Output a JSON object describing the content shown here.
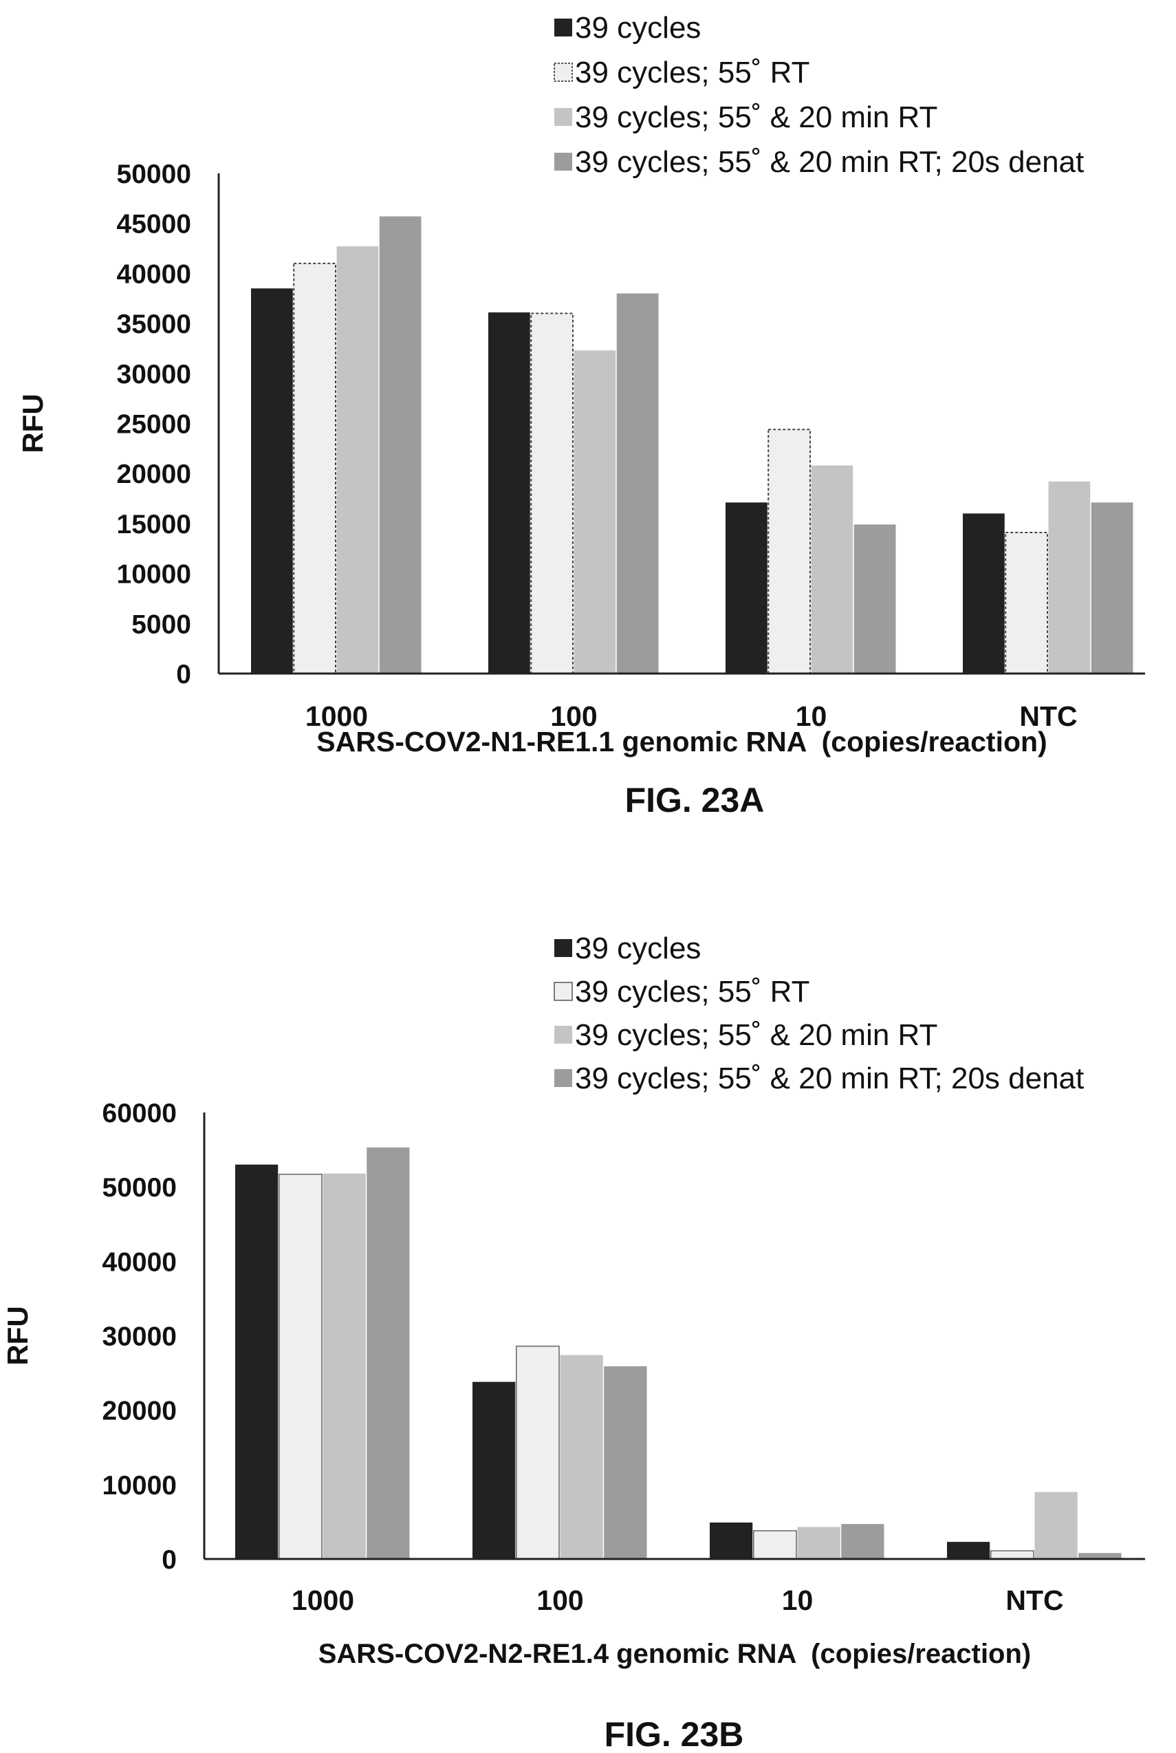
{
  "chart_data": [
    {
      "type": "bar",
      "figure_label": "FIG. 23A",
      "title": "",
      "xlabel": "SARS-COV2-N1-RE1.1 genomic RNA  (copies/reaction)",
      "ylabel": "RFU",
      "ylim": [
        0,
        50000
      ],
      "yticks": [
        0,
        5000,
        10000,
        15000,
        20000,
        25000,
        30000,
        35000,
        40000,
        45000,
        50000
      ],
      "categories": [
        "1000",
        "100",
        "10",
        "NTC"
      ],
      "legend_position": "top-right",
      "grid": false,
      "series": [
        {
          "name": "39 cycles",
          "color": "#222222",
          "values": [
            38500,
            36100,
            17100,
            16000
          ]
        },
        {
          "name": "39 cycles; 55˚ RT",
          "color": "#efefef",
          "dashed": true,
          "values": [
            41000,
            36000,
            24400,
            14100
          ]
        },
        {
          "name": "39 cycles; 55˚ & 20 min RT",
          "color": "#c4c4c4",
          "values": [
            42700,
            32300,
            20800,
            19200
          ]
        },
        {
          "name": "39 cycles; 55˚ & 20 min RT; 20s denat",
          "color": "#9c9c9c",
          "values": [
            45700,
            38000,
            14900,
            17100
          ]
        }
      ]
    },
    {
      "type": "bar",
      "figure_label": "FIG. 23B",
      "title": "",
      "xlabel": "SARS-COV2-N2-RE1.4 genomic RNA  (copies/reaction)",
      "ylabel": "RFU",
      "ylim": [
        0,
        60000
      ],
      "yticks": [
        0,
        10000,
        20000,
        30000,
        40000,
        50000,
        60000
      ],
      "categories": [
        "1000",
        "100",
        "10",
        "NTC"
      ],
      "legend_position": "top-right",
      "grid": false,
      "series": [
        {
          "name": "39 cycles",
          "color": "#222222",
          "values": [
            53000,
            23800,
            4900,
            2300
          ]
        },
        {
          "name": "39 cycles; 55˚ RT",
          "color": "#efefef",
          "values": [
            51700,
            28600,
            3800,
            1100
          ]
        },
        {
          "name": "39 cycles; 55˚ & 20 min RT",
          "color": "#c4c4c4",
          "values": [
            51800,
            27400,
            4300,
            9000
          ]
        },
        {
          "name": "39 cycles; 55˚ & 20 min RT; 20s denat",
          "color": "#9c9c9c",
          "values": [
            55300,
            25900,
            4700,
            800
          ]
        }
      ]
    }
  ]
}
